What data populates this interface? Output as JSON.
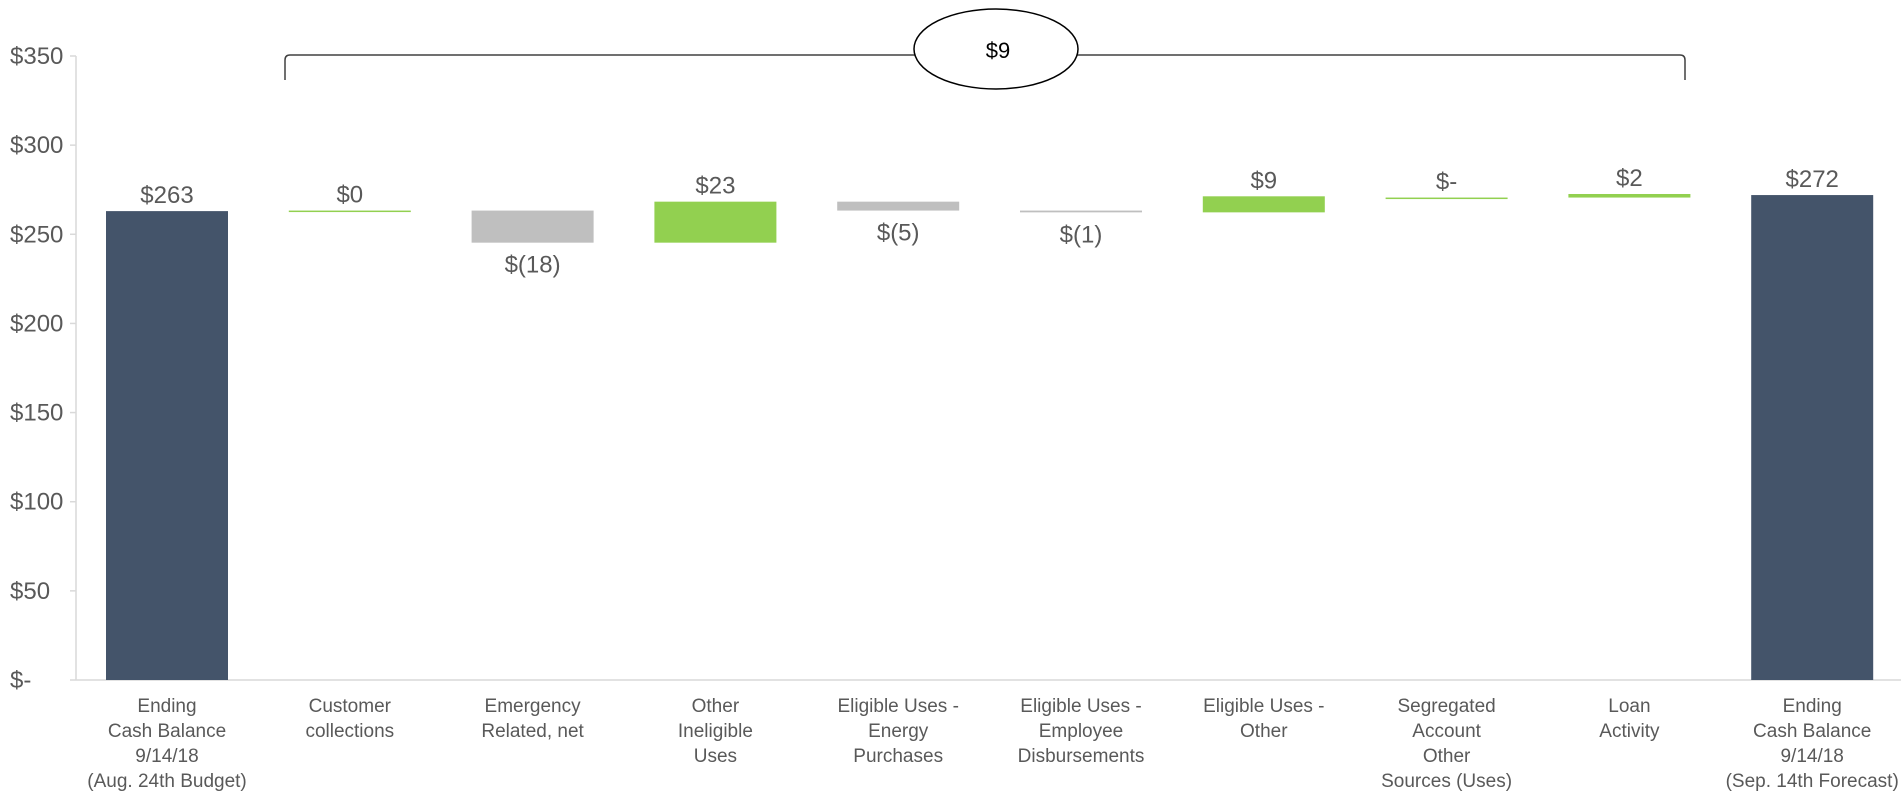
{
  "chart_data": {
    "type": "bar",
    "subtype": "waterfall",
    "ylim": [
      0,
      350
    ],
    "yticks": [
      {
        "value": 0,
        "label": "$-"
      },
      {
        "value": 50,
        "label": "$50"
      },
      {
        "value": 100,
        "label": "$100"
      },
      {
        "value": 150,
        "label": "$150"
      },
      {
        "value": 200,
        "label": "$200"
      },
      {
        "value": 250,
        "label": "$250"
      },
      {
        "value": 300,
        "label": "$300"
      },
      {
        "value": 350,
        "label": "$350"
      }
    ],
    "grid": false,
    "legend": "none",
    "colors": {
      "total": "#44546a",
      "increase": "#92d050",
      "decrease": "#bfbfbf"
    },
    "bars": [
      {
        "category": [
          "Ending",
          "Cash Balance",
          "9/14/18",
          "(Aug. 24th Budget)"
        ],
        "kind": "total",
        "value": 263,
        "base": 0,
        "label": "$263"
      },
      {
        "category": [
          "Customer",
          "collections"
        ],
        "kind": "increase",
        "value": 0.3,
        "base": 263,
        "label": "$0"
      },
      {
        "category": [
          "Emergency",
          "Related, net"
        ],
        "kind": "decrease",
        "value": -18,
        "base": 263.3,
        "label": "$(18)"
      },
      {
        "category": [
          "Other",
          "Ineligible",
          "Uses"
        ],
        "kind": "increase",
        "value": 23,
        "base": 245.3,
        "label": "$23"
      },
      {
        "category": [
          "Eligible Uses -",
          "Energy",
          "Purchases"
        ],
        "kind": "decrease",
        "value": -5,
        "base": 268.3,
        "label": "$(5)"
      },
      {
        "category": [
          "Eligible Uses -",
          "Employee",
          "Disbursements"
        ],
        "kind": "decrease",
        "value": -1,
        "base": 263.3,
        "label": "$(1)"
      },
      {
        "category": [
          "Eligible Uses -",
          "Other"
        ],
        "kind": "increase",
        "value": 9,
        "base": 262.3,
        "label": "$9"
      },
      {
        "category": [
          "Segregated",
          "Account",
          "Other",
          "Sources (Uses)"
        ],
        "kind": "increase",
        "value": 0.3,
        "base": 270.3,
        "label": "$-"
      },
      {
        "category": [
          "Loan",
          "Activity"
        ],
        "kind": "increase",
        "value": 2,
        "base": 270.6,
        "label": "$2"
      },
      {
        "category": [
          "Ending",
          "Cash Balance",
          "9/14/18",
          "(Sep. 14th Forecast)"
        ],
        "kind": "total",
        "value": 272,
        "base": 0,
        "label": "$272"
      }
    ],
    "annotation": {
      "label": "$9"
    }
  }
}
